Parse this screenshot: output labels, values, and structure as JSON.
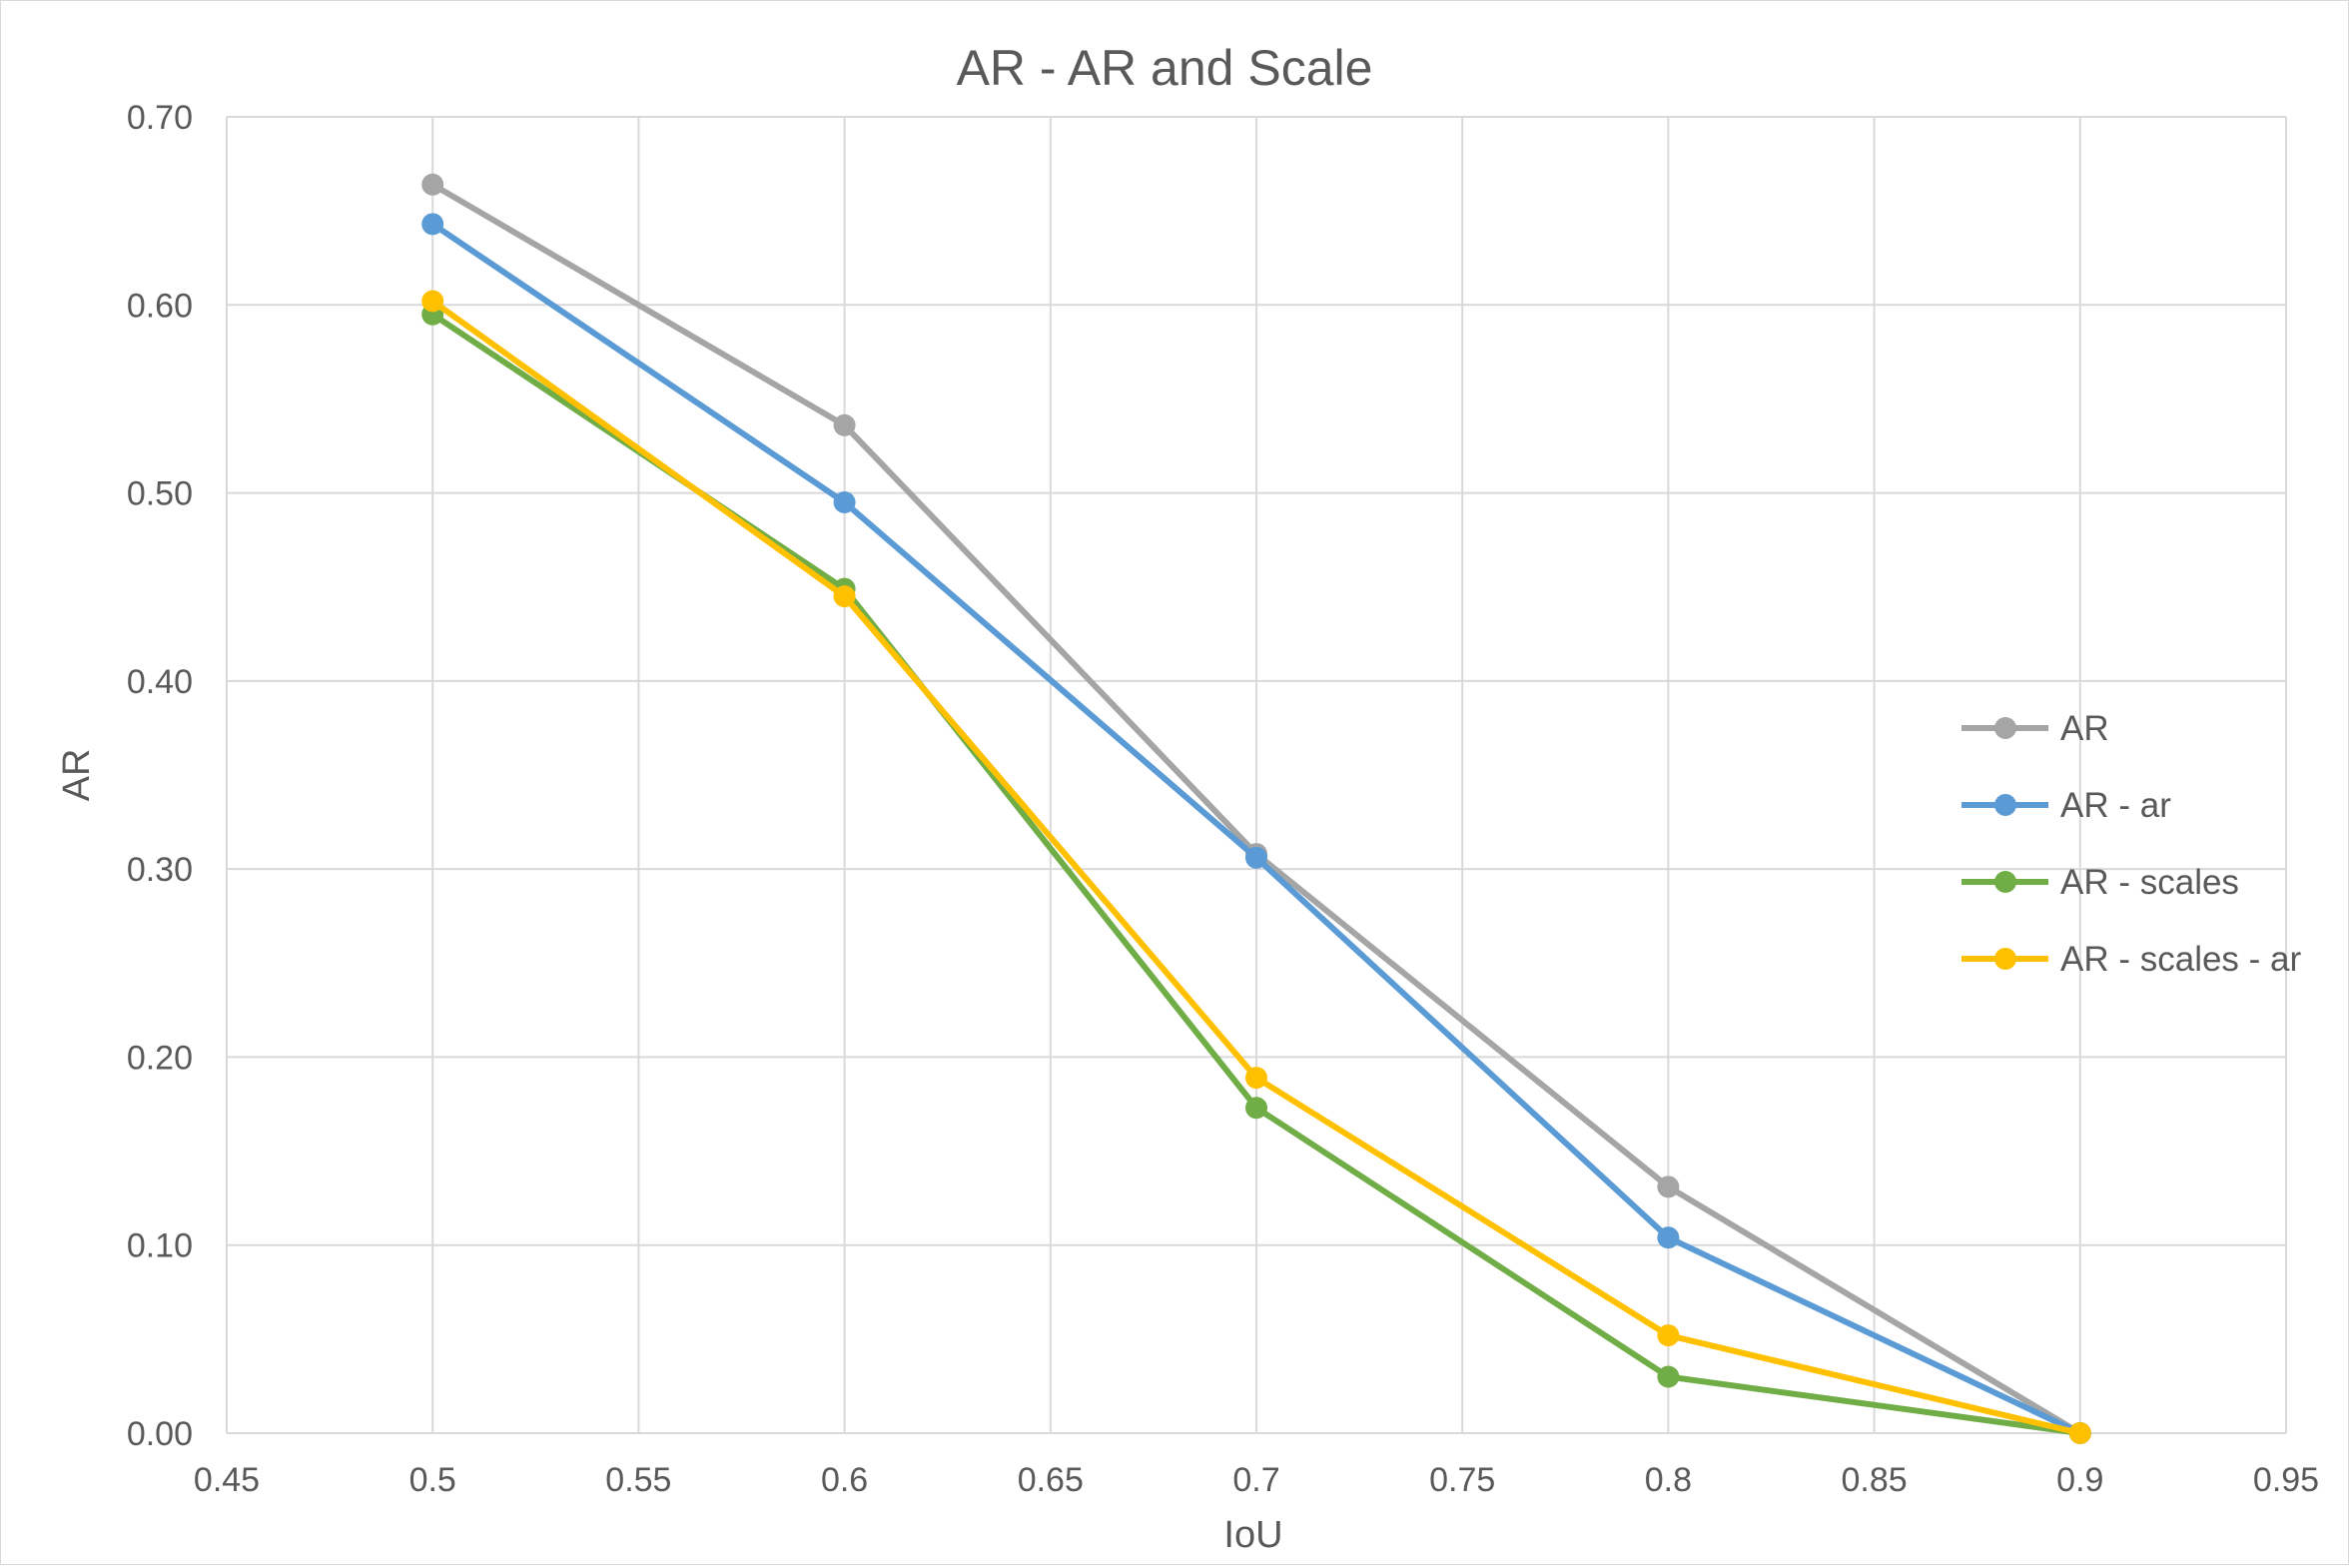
{
  "chart_data": {
    "type": "line",
    "title": "AR - AR and Scale",
    "xlabel": "IoU",
    "ylabel": "AR",
    "xlim": [
      0.45,
      0.95
    ],
    "ylim": [
      0,
      0.7
    ],
    "x_ticks": [
      "0.45",
      "0.5",
      "0.55",
      "0.6",
      "0.65",
      "0.7",
      "0.75",
      "0.8",
      "0.85",
      "0.9",
      "0.95"
    ],
    "y_ticks": [
      "0.00",
      "0.10",
      "0.20",
      "0.30",
      "0.40",
      "0.50",
      "0.60",
      "0.70"
    ],
    "grid": true,
    "legend_position": "right",
    "x": [
      0.5,
      0.6,
      0.7,
      0.8,
      0.9
    ],
    "series": [
      {
        "name": "AR",
        "color": "#a5a5a5",
        "values": [
          0.664,
          0.536,
          0.308,
          0.131,
          0.0
        ]
      },
      {
        "name": "AR - ar",
        "color": "#5b9bd5",
        "values": [
          0.643,
          0.495,
          0.306,
          0.104,
          0.0
        ]
      },
      {
        "name": "AR - scales",
        "color": "#70ad47",
        "values": [
          0.595,
          0.449,
          0.173,
          0.03,
          0.0
        ]
      },
      {
        "name": "AR - scales - ar",
        "color": "#ffc000",
        "values": [
          0.602,
          0.445,
          0.189,
          0.052,
          0.0
        ]
      }
    ]
  }
}
